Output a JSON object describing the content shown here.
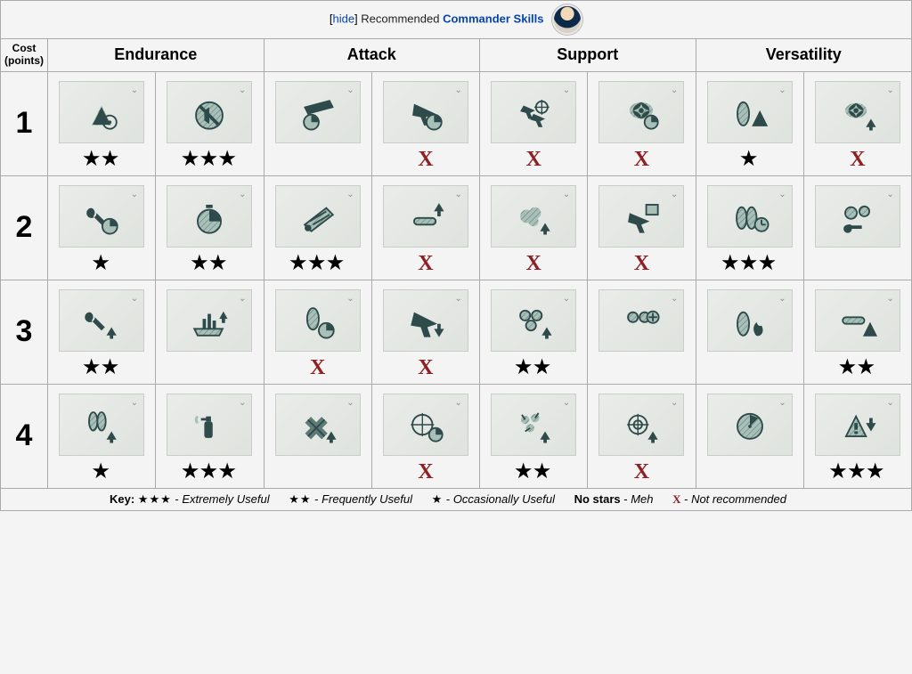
{
  "header": {
    "hide_label": "hide",
    "recommended_label": "Recommended",
    "link_label": "Commander Skills"
  },
  "columns": {
    "cost_label": "Cost",
    "cost_sub": "(points)",
    "categories": [
      "Endurance",
      "Attack",
      "Support",
      "Versatility"
    ]
  },
  "icon_colors": {
    "dark": "#2e4a4a",
    "light": "#a9c0b9",
    "bg_from": "#e9ece8",
    "bg_to": "#dfe3de"
  },
  "rating_glyphs": {
    "star": "★",
    "x": "X"
  },
  "rating_colors": {
    "star": "#000000",
    "x": "#8e2024"
  },
  "tiers": [
    {
      "label": "1",
      "skills": [
        {
          "icon": "warning-target",
          "rating": "★★"
        },
        {
          "icon": "mute-circle",
          "rating": "★★★"
        },
        {
          "icon": "ship-timer",
          "rating": ""
        },
        {
          "icon": "plane-timer",
          "rating": "X"
        },
        {
          "icon": "planes-sight",
          "rating": "X"
        },
        {
          "icon": "rotor-timer",
          "rating": "X"
        },
        {
          "icon": "shell-warning",
          "rating": "★"
        },
        {
          "icon": "rotor-up",
          "rating": "X"
        }
      ]
    },
    {
      "label": "2",
      "skills": [
        {
          "icon": "wrench-timer",
          "rating": "★"
        },
        {
          "icon": "stopwatch",
          "rating": "★★"
        },
        {
          "icon": "guns-loader",
          "rating": "★★★"
        },
        {
          "icon": "torpedo-up",
          "rating": "X"
        },
        {
          "icon": "smoke-up",
          "rating": "X"
        },
        {
          "icon": "plane-shield",
          "rating": "X"
        },
        {
          "icon": "shells-clock",
          "rating": "★★★"
        },
        {
          "icon": "wrench-gears",
          "rating": ""
        }
      ]
    },
    {
      "label": "3",
      "skills": [
        {
          "icon": "wrench-up",
          "rating": "★★"
        },
        {
          "icon": "battleship-up",
          "rating": ""
        },
        {
          "icon": "shell-timer",
          "rating": "X"
        },
        {
          "icon": "plane-down",
          "rating": "X"
        },
        {
          "icon": "icons-up",
          "rating": "★★"
        },
        {
          "icon": "icons-plus",
          "rating": ""
        },
        {
          "icon": "shell-fire",
          "rating": ""
        },
        {
          "icon": "torpedo-warning",
          "rating": "★★"
        }
      ]
    },
    {
      "label": "4",
      "skills": [
        {
          "icon": "shells-up",
          "rating": "★"
        },
        {
          "icon": "extinguisher",
          "rating": "★★★"
        },
        {
          "icon": "cross-up",
          "rating": ""
        },
        {
          "icon": "sight-timer",
          "rating": "X"
        },
        {
          "icon": "burst-up",
          "rating": "★★"
        },
        {
          "icon": "target-up",
          "rating": "X"
        },
        {
          "icon": "radar-disc",
          "rating": ""
        },
        {
          "icon": "warning-down",
          "rating": "★★★"
        }
      ]
    }
  ],
  "key": {
    "label": "Key:",
    "items": [
      {
        "symbol": "★★★",
        "type": "stars",
        "desc": "Extremely Useful"
      },
      {
        "symbol": "★★",
        "type": "stars",
        "desc": "Frequently Useful"
      },
      {
        "symbol": "★",
        "type": "stars",
        "desc": "Occasionally Useful"
      },
      {
        "symbol": "No stars",
        "type": "plain",
        "desc": "Meh"
      },
      {
        "symbol": "X",
        "type": "x",
        "desc": "Not recommended"
      }
    ]
  }
}
